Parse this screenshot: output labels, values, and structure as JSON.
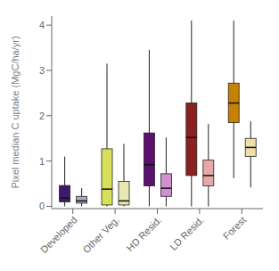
{
  "chart_data": {
    "type": "box",
    "categories": [
      "Developed",
      "Other Veg.",
      "HD Resid.",
      "LD Resid.",
      "Forest"
    ],
    "ylabel": "Pixel median C uptake (MgC/ha/yr)",
    "ylim": [
      -0.05,
      4.2
    ],
    "yticks": [
      0,
      1,
      2,
      3,
      4
    ],
    "series": [
      {
        "colors": [
          "#3d1a70",
          "#d8e05a",
          "#5c1070",
          "#8b2222",
          "#c88000"
        ],
        "values": [
          {
            "whislo": 0.0,
            "q1": 0.1,
            "med": 0.18,
            "q3": 0.46,
            "whishi": 1.1
          },
          {
            "whislo": 0.0,
            "q1": 0.03,
            "med": 0.38,
            "q3": 1.27,
            "whishi": 3.15
          },
          {
            "whislo": 0.0,
            "q1": 0.45,
            "med": 0.92,
            "q3": 1.62,
            "whishi": 3.45
          },
          {
            "whislo": 0.0,
            "q1": 0.68,
            "med": 1.52,
            "q3": 2.28,
            "whishi": 4.1
          },
          {
            "whislo": 0.62,
            "q1": 1.85,
            "med": 2.28,
            "q3": 2.72,
            "whishi": 4.1
          }
        ]
      },
      {
        "colors": [
          "#b0aac0",
          "#e8e8b0",
          "#d090d0",
          "#e8a8a8",
          "#f0dea8"
        ],
        "values": [
          {
            "whislo": 0.0,
            "q1": 0.07,
            "med": 0.12,
            "q3": 0.22,
            "whishi": 0.4
          },
          {
            "whislo": 0.0,
            "q1": 0.03,
            "med": 0.12,
            "q3": 0.55,
            "whishi": 1.38
          },
          {
            "whislo": 0.0,
            "q1": 0.22,
            "med": 0.4,
            "q3": 0.72,
            "whishi": 1.52
          },
          {
            "whislo": 0.0,
            "q1": 0.45,
            "med": 0.68,
            "q3": 1.02,
            "whishi": 1.82
          },
          {
            "whislo": 0.42,
            "q1": 1.1,
            "med": 1.3,
            "q3": 1.5,
            "whishi": 1.88
          }
        ]
      }
    ]
  }
}
